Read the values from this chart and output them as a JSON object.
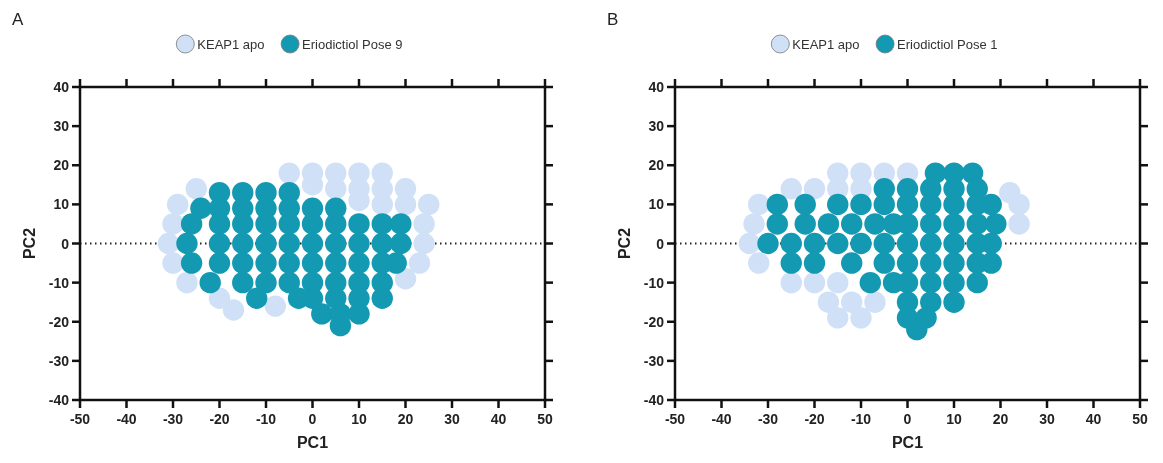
{
  "chart_data": [
    {
      "type": "scatter",
      "annotations": [
        "A"
      ],
      "xlabel": "PC1",
      "ylabel": "PC2",
      "xlim": [
        -50,
        50
      ],
      "ylim": [
        -40,
        40
      ],
      "xticks": [
        -50,
        -40,
        -30,
        -20,
        -10,
        0,
        10,
        20,
        30,
        40,
        50
      ],
      "yticks": [
        -40,
        -30,
        -20,
        -10,
        0,
        10,
        20,
        30,
        40
      ],
      "grid": false,
      "legend": "top",
      "marker": "circle",
      "ref_lines": [
        {
          "axis": "y",
          "value": 0,
          "line_style": "dotted",
          "color": "#222222"
        }
      ],
      "series": [
        {
          "name": "KEAP1 apo",
          "color": "#cfe0f7",
          "x": [
            -5,
            0,
            5,
            10,
            15,
            -25,
            0,
            5,
            10,
            15,
            20,
            -29,
            10,
            15,
            20,
            25,
            -30,
            24,
            -31,
            24,
            -30,
            23,
            -27,
            20,
            -20,
            -17,
            -8
          ],
          "values": [
            18,
            18,
            18,
            18,
            18,
            14,
            15,
            14,
            14,
            14,
            14,
            10,
            11,
            10,
            10,
            10,
            5,
            5,
            0,
            0,
            -5,
            -5,
            -10,
            -9,
            -14,
            -17,
            -16
          ]
        },
        {
          "name": "Eriodictiol Pose 9",
          "color": "#1499b2",
          "x": [
            -20,
            -15,
            -10,
            -5,
            -24,
            -20,
            -15,
            -10,
            -5,
            0,
            5,
            -26,
            -20,
            -15,
            -10,
            -5,
            0,
            5,
            10,
            15,
            19,
            -27,
            -20,
            -15,
            -10,
            -5,
            0,
            5,
            10,
            15,
            19,
            -26,
            -20,
            -15,
            -10,
            -5,
            0,
            5,
            10,
            15,
            18,
            -22,
            -15,
            -10,
            -5,
            0,
            5,
            10,
            15,
            -12,
            -3,
            0,
            5,
            10,
            15,
            2,
            6,
            10,
            6
          ],
          "values": [
            13,
            13,
            13,
            13,
            9,
            9,
            9,
            9,
            9,
            9,
            9,
            5,
            5,
            5,
            5,
            5,
            5,
            5,
            5,
            5,
            5,
            0,
            0,
            0,
            0,
            0,
            0,
            0,
            0,
            0,
            0,
            -5,
            -5,
            -5,
            -5,
            -5,
            -5,
            -5,
            -5,
            -5,
            -5,
            -10,
            -10,
            -10,
            -10,
            -10,
            -10,
            -10,
            -10,
            -14,
            -14,
            -14,
            -14,
            -14,
            -14,
            -18,
            -18,
            -18,
            -21
          ]
        }
      ]
    },
    {
      "type": "scatter",
      "annotations": [
        "B"
      ],
      "xlabel": "PC1",
      "ylabel": "PC2",
      "xlim": [
        -50,
        50
      ],
      "ylim": [
        -40,
        40
      ],
      "xticks": [
        -50,
        -40,
        -30,
        -20,
        -10,
        0,
        10,
        20,
        30,
        40,
        50
      ],
      "yticks": [
        -40,
        -30,
        -20,
        -10,
        0,
        10,
        20,
        30,
        40
      ],
      "grid": false,
      "legend": "top",
      "marker": "circle",
      "ref_lines": [
        {
          "axis": "y",
          "value": 0,
          "line_style": "dotted",
          "color": "#222222"
        }
      ],
      "series": [
        {
          "name": "KEAP1 apo",
          "color": "#cfe0f7",
          "x": [
            -15,
            -10,
            -5,
            0,
            -25,
            -20,
            -15,
            -10,
            -32,
            -33,
            -34,
            -32,
            -25,
            -20,
            -15,
            -17,
            -12,
            -7,
            -15,
            -10,
            22,
            24,
            24
          ],
          "values": [
            18,
            18,
            18,
            18,
            14,
            14,
            14,
            14,
            10,
            5,
            0,
            -5,
            -10,
            -10,
            -10,
            -15,
            -15,
            -15,
            -19,
            -19,
            13,
            10,
            5
          ]
        },
        {
          "name": "Eriodictiol Pose 1",
          "color": "#1499b2",
          "x": [
            6,
            10,
            14,
            -5,
            0,
            5,
            10,
            15,
            -28,
            -22,
            -15,
            -10,
            -5,
            0,
            5,
            10,
            15,
            18,
            -28,
            -22,
            -17,
            -12,
            -7,
            -3,
            0,
            5,
            10,
            15,
            19,
            -30,
            -25,
            -20,
            -15,
            -10,
            -5,
            0,
            5,
            10,
            15,
            18,
            -25,
            -20,
            -12,
            -5,
            0,
            5,
            10,
            15,
            18,
            -8,
            -3,
            0,
            5,
            10,
            15,
            0,
            5,
            10,
            0,
            4,
            2
          ],
          "values": [
            18,
            18,
            18,
            14,
            14,
            14,
            14,
            14,
            10,
            10,
            10,
            10,
            10,
            10,
            10,
            10,
            10,
            10,
            5,
            5,
            5,
            5,
            5,
            5,
            5,
            5,
            5,
            5,
            5,
            0,
            0,
            0,
            0,
            0,
            0,
            0,
            0,
            0,
            0,
            0,
            -5,
            -5,
            -5,
            -5,
            -5,
            -5,
            -5,
            -5,
            -5,
            -10,
            -10,
            -10,
            -10,
            -10,
            -10,
            -15,
            -15,
            -15,
            -19,
            -19,
            -22
          ]
        }
      ]
    }
  ]
}
